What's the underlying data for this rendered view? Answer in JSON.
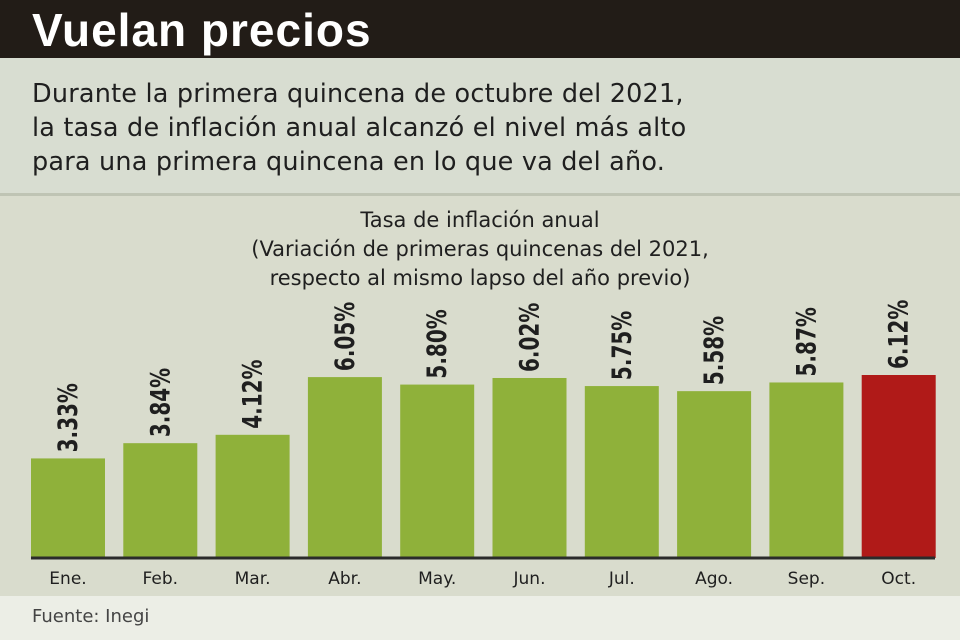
{
  "header": {
    "title": "Vuelan precios"
  },
  "subtitle": {
    "lines": [
      "Durante la primera quincena de octubre del 2021,",
      "la tasa de inflación anual alcanzó el nivel más alto",
      "para una primera quincena en lo que va del año."
    ]
  },
  "chart_data": {
    "type": "bar",
    "title_lines": [
      "Tasa de inflación anual",
      "(Variación de primeras quincenas del 2021,",
      "respecto al mismo lapso del año previo)"
    ],
    "categories": [
      "Ene.",
      "Feb.",
      "Mar.",
      "Abr.",
      "May.",
      "Jun.",
      "Jul.",
      "Ago.",
      "Sep.",
      "Oct."
    ],
    "values": [
      3.33,
      3.84,
      4.12,
      6.05,
      5.8,
      6.02,
      5.75,
      5.58,
      5.87,
      6.12
    ],
    "data_labels": [
      "3.33%",
      "3.84%",
      "4.12%",
      "6.05%",
      "5.80%",
      "6.02%",
      "5.75%",
      "5.58%",
      "5.87%",
      "6.12%"
    ],
    "highlight_index": 9,
    "colors": {
      "bar": "#8fb13a",
      "bar_highlight": "#b01a18",
      "baseline": "#2b2b2b"
    },
    "xlabel": "",
    "ylabel": "",
    "ylim": [
      0,
      6.12
    ],
    "grid": false,
    "legend": "none"
  },
  "footer": {
    "source": "Fuente: Inegi"
  }
}
